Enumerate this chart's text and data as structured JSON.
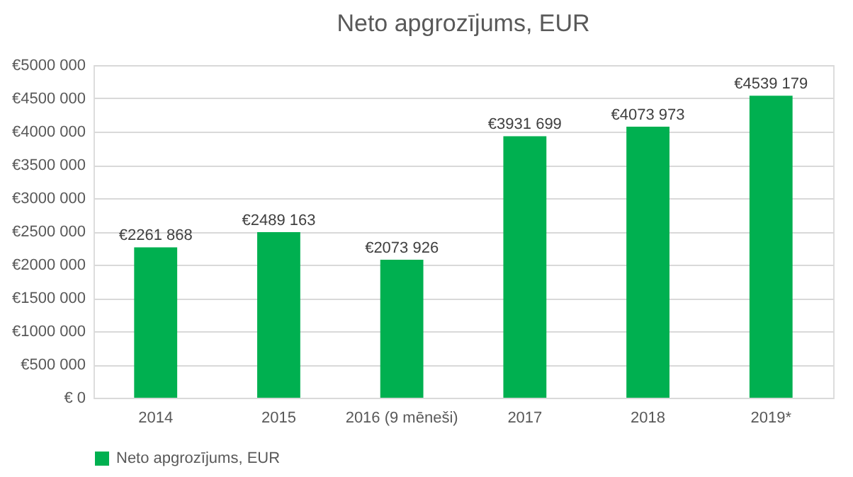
{
  "chart_data": {
    "type": "bar",
    "title": "Neto apgrozījums, EUR",
    "categories": [
      "2014",
      "2015",
      "2016 (9 mēneši)",
      "2017",
      "2018",
      "2019*"
    ],
    "series": [
      {
        "name": "Neto apgrozījums, EUR",
        "color": "#00b050",
        "values": [
          2261868,
          2489163,
          2073926,
          3931699,
          4073973,
          4539179
        ],
        "value_labels": [
          "€2261 868",
          "€2489 163",
          "€2073 926",
          "€3931 699",
          "€4073 973",
          "€4539 179"
        ]
      }
    ],
    "ylim": [
      0,
      5000000
    ],
    "yticks": [
      {
        "value": 0,
        "label": "€ 0"
      },
      {
        "value": 500000,
        "label": "€500 000"
      },
      {
        "value": 1000000,
        "label": "€1000 000"
      },
      {
        "value": 1500000,
        "label": "€1500 000"
      },
      {
        "value": 2000000,
        "label": "€2000 000"
      },
      {
        "value": 2500000,
        "label": "€2500 000"
      },
      {
        "value": 3000000,
        "label": "€3000 000"
      },
      {
        "value": 3500000,
        "label": "€3500 000"
      },
      {
        "value": 4000000,
        "label": "€4000 000"
      },
      {
        "value": 4500000,
        "label": "€4500 000"
      },
      {
        "value": 5000000,
        "label": "€5000 000"
      }
    ],
    "grid": "y",
    "legend": "bottom"
  }
}
